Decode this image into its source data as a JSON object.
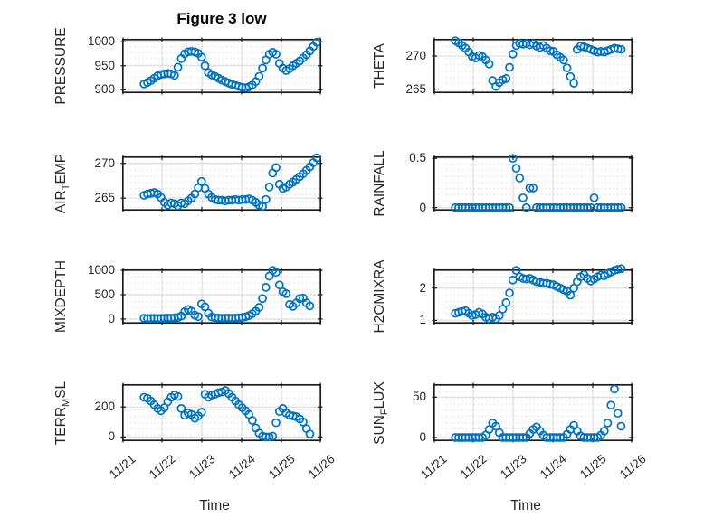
{
  "chart_data": {
    "type": "scatter",
    "title": "Figure 3 low",
    "xlabel": "Time",
    "x_range": [
      0,
      5
    ],
    "x_tick_values": [
      0,
      1,
      2,
      3,
      4,
      5
    ],
    "x_tick_labels": [
      "11/21",
      "11/22",
      "11/23",
      "11/24",
      "11/25",
      "11/26"
    ],
    "marker": "open-circle",
    "grid": "major-solid-minor-dotted",
    "colors": {
      "marker": "#0072BD",
      "box": "#1a1a1a",
      "grid": "#d9d9d9",
      "minor_dot": "#c3c3c3",
      "text": "#262626"
    },
    "subplots": [
      {
        "key": "pressure",
        "name": "PRESSURE",
        "row": 0,
        "col": 0,
        "ylabel_parts": [
          {
            "text": "PRESSURE",
            "sub": false
          }
        ],
        "ylim": [
          893,
          1006
        ],
        "yticks": [
          {
            "v": 900,
            "t": "900"
          },
          {
            "v": 950,
            "t": "950"
          },
          {
            "v": 1000,
            "t": "1000"
          }
        ],
        "x0": 0.55,
        "dx": 0.085,
        "y": [
          912,
          915,
          919,
          924,
          929,
          932,
          933,
          934,
          933,
          930,
          947,
          965,
          975,
          979,
          980,
          979,
          976,
          968,
          950,
          936,
          931,
          928,
          924,
          920,
          917,
          914,
          911,
          909,
          907,
          905,
          904,
          906,
          910,
          917,
          928,
          945,
          962,
          974,
          978,
          974,
          955,
          945,
          940,
          944,
          950,
          955,
          960,
          966,
          973,
          981,
          990,
          999
        ]
      },
      {
        "key": "theta",
        "name": "THETA",
        "row": 0,
        "col": 1,
        "ylabel_parts": [
          {
            "text": "THETA",
            "sub": false
          }
        ],
        "ylim": [
          264.4,
          272.6
        ],
        "yticks": [
          {
            "v": 265,
            "t": "265"
          },
          {
            "v": 270,
            "t": "270"
          }
        ],
        "x0": 0.55,
        "dx": 0.085,
        "y": [
          272.3,
          272.0,
          271.6,
          271.2,
          270.6,
          269.9,
          269.7,
          270.1,
          269.9,
          269.4,
          268.8,
          266.3,
          265.4,
          266.0,
          266.4,
          266.6,
          268.3,
          270.3,
          271.6,
          271.9,
          271.8,
          271.9,
          271.7,
          271.9,
          271.5,
          271.3,
          271.6,
          271.2,
          270.8,
          270.7,
          270.2,
          269.8,
          269.4,
          268.2,
          266.9,
          265.9,
          271.0,
          271.5,
          271.4,
          271.2,
          271.0,
          270.8,
          270.6,
          270.7,
          270.6,
          270.8,
          271.0,
          271.2,
          271.1,
          271.0,
          null,
          null
        ]
      },
      {
        "key": "air-temp",
        "name": "AIR_TEMP",
        "row": 1,
        "col": 0,
        "ylabel_parts": [
          {
            "text": "AIR",
            "sub": false
          },
          {
            "text": "T",
            "sub": true
          },
          {
            "text": "EMP",
            "sub": false
          }
        ],
        "ylim": [
          263.2,
          271.0
        ],
        "yticks": [
          {
            "v": 265,
            "t": "265"
          },
          {
            "v": 270,
            "t": "270"
          }
        ],
        "x0": 0.55,
        "dx": 0.085,
        "y": [
          265.4,
          265.6,
          265.7,
          265.8,
          265.6,
          265.1,
          264.4,
          264.0,
          264.3,
          264.2,
          263.9,
          264.3,
          264.2,
          264.6,
          265.0,
          265.6,
          266.5,
          267.4,
          266.4,
          265.6,
          265.1,
          264.8,
          264.7,
          264.7,
          264.6,
          264.7,
          264.7,
          264.8,
          264.7,
          264.8,
          264.8,
          264.9,
          264.7,
          264.4,
          264.0,
          263.8,
          264.8,
          266.6,
          268.6,
          269.4,
          267.0,
          266.4,
          266.6,
          267.0,
          267.3,
          267.7,
          268.1,
          268.5,
          269.0,
          269.5,
          270.1,
          270.8
        ]
      },
      {
        "key": "rainfall",
        "name": "RAINFALL",
        "row": 1,
        "col": 1,
        "ylabel_parts": [
          {
            "text": "RAINFALL",
            "sub": false
          }
        ],
        "ylim": [
          -0.03,
          0.52
        ],
        "yticks": [
          {
            "v": 0,
            "t": "0"
          },
          {
            "v": 0.5,
            "t": "0.5"
          }
        ],
        "x0": 0.55,
        "dx": 0.085,
        "y": [
          0,
          0,
          0,
          0,
          0,
          0,
          0,
          0,
          0,
          0,
          0,
          0,
          0,
          0,
          0,
          0,
          0,
          0.5,
          0.4,
          0.3,
          0.1,
          0,
          0.2,
          0.2,
          0,
          0,
          0,
          0,
          0,
          0,
          0,
          0,
          0,
          0,
          0,
          0,
          0,
          0,
          0,
          0,
          0,
          0.1,
          0,
          0,
          0,
          0,
          0,
          0,
          0,
          0,
          null,
          null
        ]
      },
      {
        "key": "mixdepth",
        "name": "MIXDEPTH",
        "row": 2,
        "col": 0,
        "ylabel_parts": [
          {
            "text": "MIXDEPTH",
            "sub": false
          }
        ],
        "ylim": [
          -95,
          1020
        ],
        "yticks": [
          {
            "v": 0,
            "t": "0"
          },
          {
            "v": 500,
            "t": "500"
          },
          {
            "v": 1000,
            "t": "1000"
          }
        ],
        "x0": 0.55,
        "dx": 0.085,
        "y": [
          15,
          10,
          12,
          15,
          10,
          12,
          15,
          20,
          18,
          25,
          30,
          60,
          150,
          195,
          160,
          80,
          50,
          310,
          250,
          120,
          40,
          25,
          20,
          15,
          18,
          20,
          15,
          20,
          25,
          30,
          45,
          70,
          110,
          160,
          240,
          420,
          650,
          880,
          1000,
          960,
          700,
          560,
          520,
          300,
          260,
          330,
          420,
          430,
          330,
          270,
          null,
          null
        ]
      },
      {
        "key": "h2omixra",
        "name": "H2OMIXRA",
        "row": 2,
        "col": 1,
        "ylabel_parts": [
          {
            "text": "H2OMIXRA",
            "sub": false
          }
        ],
        "ylim": [
          0.9,
          2.58
        ],
        "yticks": [
          {
            "v": 1,
            "t": "1"
          },
          {
            "v": 2,
            "t": "2"
          }
        ],
        "x0": 0.55,
        "dx": 0.085,
        "y": [
          1.22,
          1.25,
          1.28,
          1.3,
          1.22,
          1.15,
          1.18,
          1.25,
          1.2,
          1.1,
          1.05,
          1.1,
          1.05,
          1.15,
          1.35,
          1.55,
          1.85,
          2.25,
          2.55,
          2.35,
          2.3,
          2.28,
          2.3,
          2.25,
          2.2,
          2.18,
          2.15,
          2.15,
          2.12,
          2.1,
          2.05,
          2.0,
          1.95,
          1.9,
          1.78,
          2.0,
          2.2,
          2.35,
          2.42,
          2.3,
          2.22,
          2.28,
          2.35,
          2.4,
          2.38,
          2.45,
          2.5,
          2.55,
          2.58,
          2.6,
          null,
          null
        ]
      },
      {
        "key": "terr-msl",
        "name": "TERR_MSL",
        "row": 3,
        "col": 0,
        "ylabel_parts": [
          {
            "text": "TERR",
            "sub": false
          },
          {
            "text": "M",
            "sub": true
          },
          {
            "text": "SL",
            "sub": false
          }
        ],
        "ylim": [
          -28,
          352
        ],
        "yticks": [
          {
            "v": 0,
            "t": "0"
          },
          {
            "v": 200,
            "t": "200"
          }
        ],
        "x0": 0.55,
        "dx": 0.085,
        "y": [
          265,
          258,
          240,
          215,
          190,
          175,
          195,
          235,
          265,
          280,
          270,
          190,
          145,
          160,
          150,
          125,
          140,
          165,
          285,
          265,
          280,
          285,
          295,
          300,
          310,
          290,
          265,
          240,
          215,
          195,
          175,
          150,
          110,
          60,
          25,
          5,
          0,
          0,
          5,
          95,
          170,
          190,
          160,
          145,
          140,
          135,
          120,
          100,
          55,
          20,
          null,
          null
        ]
      },
      {
        "key": "sun-flux",
        "name": "SUN_FLUX",
        "row": 3,
        "col": 1,
        "ylabel_parts": [
          {
            "text": "SUN",
            "sub": false
          },
          {
            "text": "F",
            "sub": true
          },
          {
            "text": "LUX",
            "sub": false
          }
        ],
        "ylim": [
          -4.5,
          66
        ],
        "yticks": [
          {
            "v": 0,
            "t": "0"
          },
          {
            "v": 50,
            "t": "50"
          }
        ],
        "x0": 0.55,
        "dx": 0.085,
        "y": [
          0,
          0,
          0,
          0,
          0,
          0,
          0,
          0,
          0,
          3,
          10,
          18,
          14,
          6,
          0,
          0,
          0,
          0,
          0,
          0,
          0,
          0,
          5,
          10,
          13,
          8,
          3,
          0,
          0,
          0,
          0,
          0,
          0,
          4,
          10,
          15,
          8,
          2,
          0,
          0,
          0,
          0,
          0,
          3,
          8,
          18,
          40,
          60,
          30,
          14,
          null,
          null
        ]
      }
    ]
  }
}
